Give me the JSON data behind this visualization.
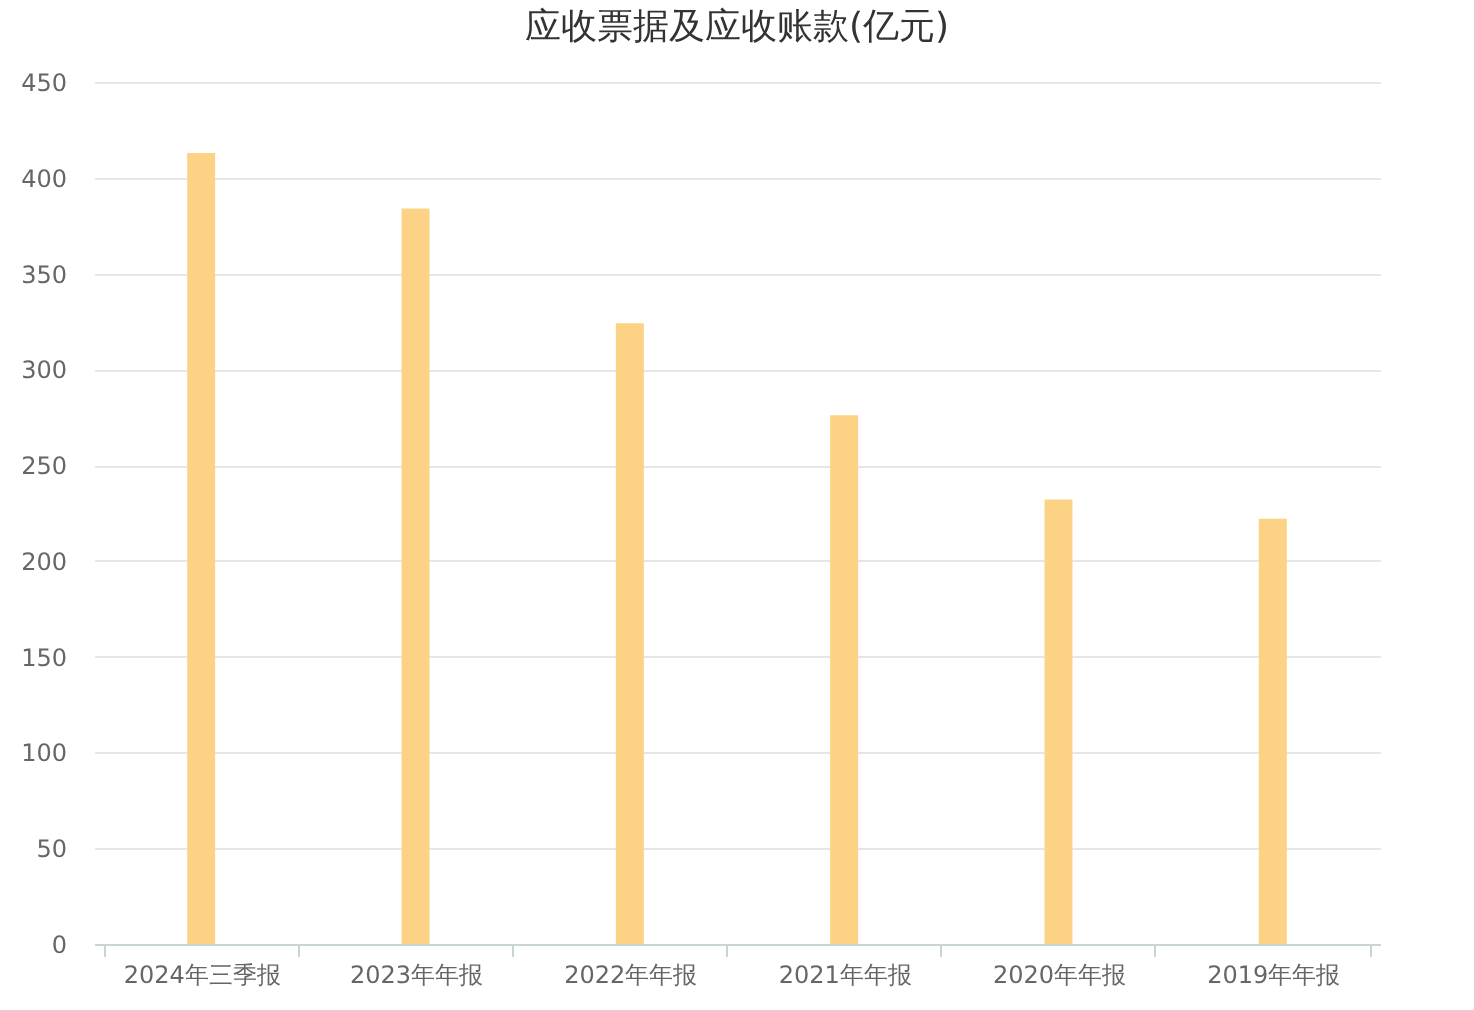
{
  "chart_data": {
    "type": "bar",
    "title": "应收票据及应收账款(亿元)",
    "categories": [
      "2024年三季报",
      "2023年年报",
      "2022年年报",
      "2021年年报",
      "2020年年报",
      "2019年年报"
    ],
    "values": [
      413,
      384,
      324,
      276,
      232,
      222
    ],
    "color": "#fcd385",
    "ylim": [
      0,
      450
    ],
    "yticks": [
      0,
      50,
      100,
      150,
      200,
      250,
      300,
      350,
      400,
      450
    ],
    "grid": "y"
  }
}
